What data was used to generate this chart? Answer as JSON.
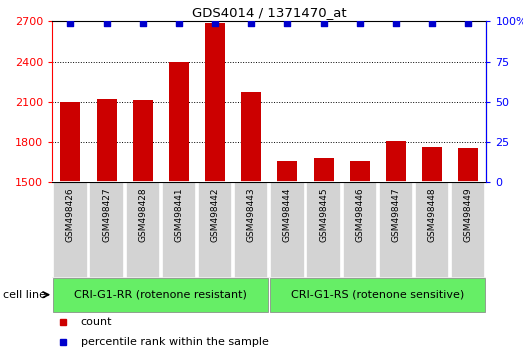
{
  "title": "GDS4014 / 1371470_at",
  "samples": [
    "GSM498426",
    "GSM498427",
    "GSM498428",
    "GSM498441",
    "GSM498442",
    "GSM498443",
    "GSM498444",
    "GSM498445",
    "GSM498446",
    "GSM498447",
    "GSM498448",
    "GSM498449"
  ],
  "counts": [
    2100,
    2120,
    2110,
    2400,
    2690,
    2170,
    1660,
    1680,
    1660,
    1810,
    1760,
    1755
  ],
  "percentile_ranks": [
    99,
    99,
    99,
    99,
    99,
    99,
    99,
    99,
    99,
    99,
    99,
    99
  ],
  "group1_label": "CRI-G1-RR (rotenone resistant)",
  "group2_label": "CRI-G1-RS (rotenone sensitive)",
  "group1_count": 6,
  "group2_count": 6,
  "ylim_left": [
    1500,
    2700
  ],
  "ylim_right": [
    0,
    100
  ],
  "yticks_left": [
    1500,
    1800,
    2100,
    2400,
    2700
  ],
  "yticks_right": [
    0,
    25,
    50,
    75,
    100
  ],
  "bar_color": "#cc0000",
  "dot_color": "#0000cc",
  "group_bg": "#66ee66",
  "bar_bg": "#d3d3d3",
  "cell_line_label": "cell line",
  "legend_count_label": "count",
  "legend_pct_label": "percentile rank within the sample",
  "fig_width": 5.23,
  "fig_height": 3.54,
  "fig_dpi": 100
}
